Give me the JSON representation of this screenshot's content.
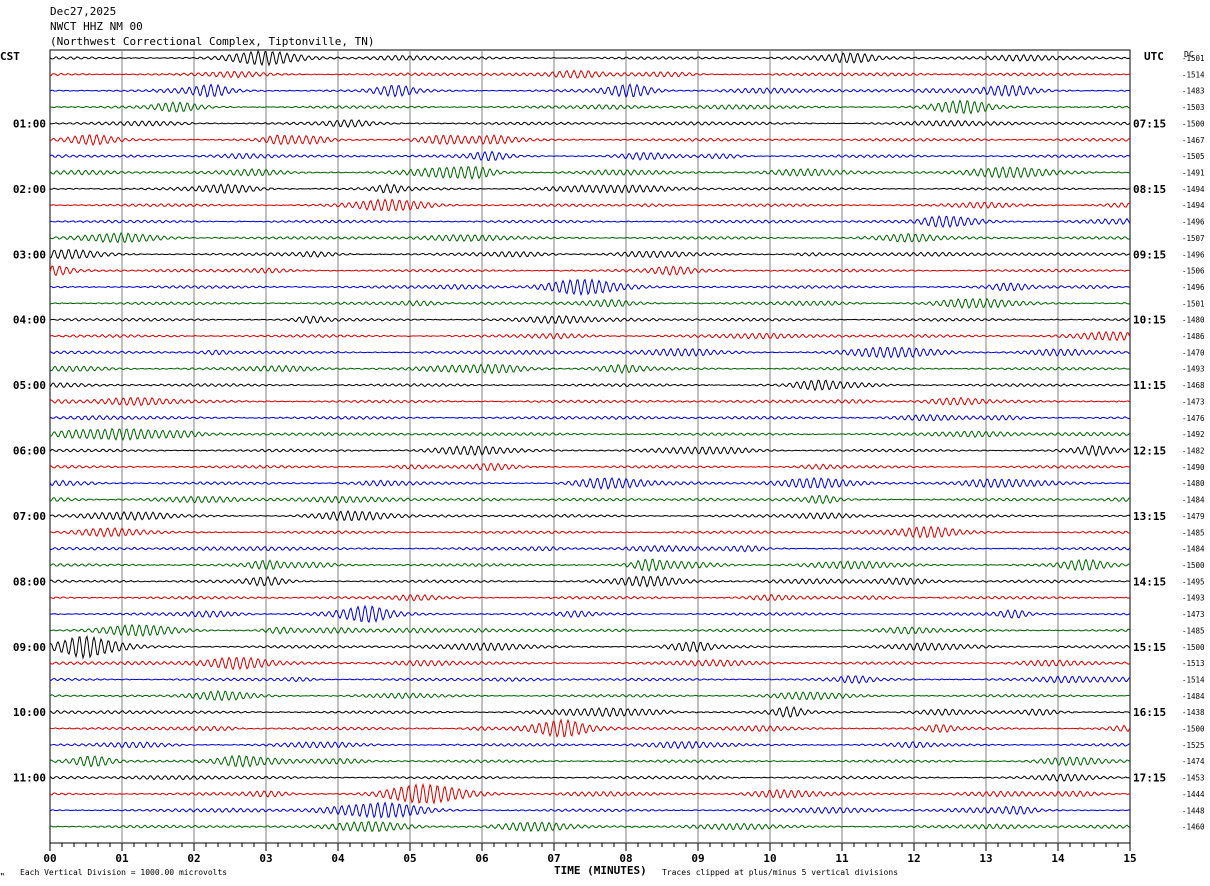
{
  "header": {
    "date": "Dec27,2025",
    "station": "NWCT HHZ NM 00",
    "location": "(Northwest Correctional Complex, Tiptonville, TN)"
  },
  "left_axis_label": "CST",
  "right_axis_label": "UTC",
  "dc_label": "DC",
  "footer": {
    "vertical_division": "Each Vertical Division = 1000.00 microvolts",
    "xlabel": "TIME (MINUTES)",
    "clip_note": "Traces clipped at plus/minus 5 vertical divisions"
  },
  "colors": {
    "trace_cycle": [
      "#000000",
      "#d40000",
      "#0000d4",
      "#006400"
    ],
    "grid": "#808080"
  },
  "chart_data": {
    "type": "line",
    "title": "NWCT HHZ NM 00",
    "xlabel": "TIME (MINUTES)",
    "xlim": [
      0,
      15
    ],
    "x_ticks": [
      "00",
      "01",
      "02",
      "03",
      "04",
      "05",
      "06",
      "07",
      "08",
      "09",
      "10",
      "11",
      "12",
      "13",
      "14",
      "15"
    ],
    "rows": 48,
    "minutes_per_row": 15,
    "left_time_labels": [
      {
        "row": 4,
        "label": "01:00"
      },
      {
        "row": 8,
        "label": "02:00"
      },
      {
        "row": 12,
        "label": "03:00"
      },
      {
        "row": 16,
        "label": "04:00"
      },
      {
        "row": 20,
        "label": "05:00"
      },
      {
        "row": 24,
        "label": "06:00"
      },
      {
        "row": 28,
        "label": "07:00"
      },
      {
        "row": 32,
        "label": "08:00"
      },
      {
        "row": 36,
        "label": "09:00"
      },
      {
        "row": 40,
        "label": "10:00"
      },
      {
        "row": 44,
        "label": "11:00"
      }
    ],
    "right_time_labels": [
      {
        "row": 4,
        "label": "07:15"
      },
      {
        "row": 8,
        "label": "08:15"
      },
      {
        "row": 12,
        "label": "09:15"
      },
      {
        "row": 16,
        "label": "10:15"
      },
      {
        "row": 20,
        "label": "11:15"
      },
      {
        "row": 24,
        "label": "12:15"
      },
      {
        "row": 28,
        "label": "13:15"
      },
      {
        "row": 32,
        "label": "14:15"
      },
      {
        "row": 36,
        "label": "15:15"
      },
      {
        "row": 40,
        "label": "16:15"
      },
      {
        "row": 44,
        "label": "17:15"
      }
    ],
    "dc_offsets": [
      "-1501",
      "-1514",
      "-1483",
      "-1503",
      "-1500",
      "-1467",
      "-1505",
      "-1491",
      "-1494",
      "-1494",
      "-1496",
      "-1507",
      "-1496",
      "-1506",
      "-1496",
      "-1501",
      "-1480",
      "-1486",
      "-1470",
      "-1493",
      "-1468",
      "-1473",
      "-1476",
      "-1492",
      "-1482",
      "-1490",
      "-1480",
      "-1484",
      "-1479",
      "-1485",
      "-1484",
      "-1500",
      "-1495",
      "-1493",
      "-1473",
      "-1485",
      "-1500",
      "-1513",
      "-1514",
      "-1484",
      "-1438",
      "-1500",
      "-1525",
      "-1474",
      "-1453",
      "-1444",
      "-1448",
      "-1460"
    ],
    "series_color_cycle": [
      "black",
      "red",
      "blue",
      "green"
    ]
  }
}
